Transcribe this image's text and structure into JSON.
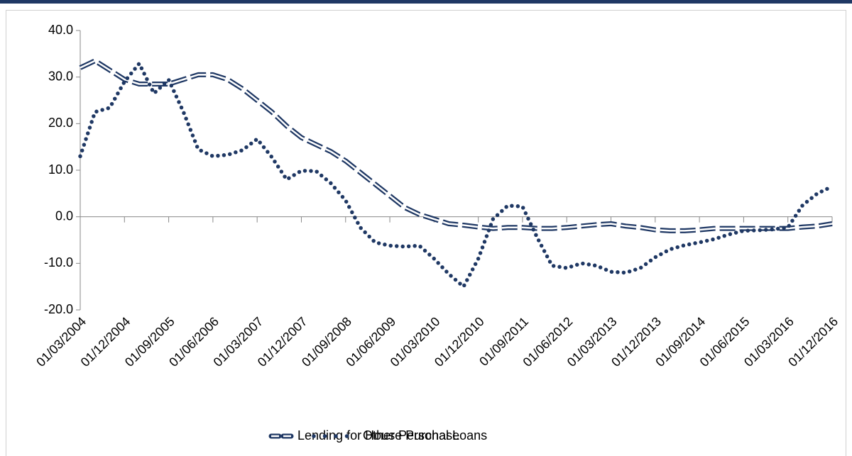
{
  "chart_data": {
    "type": "line",
    "categories": [
      "01/03/2004",
      null,
      null,
      "01/12/2004",
      null,
      null,
      "01/09/2005",
      null,
      null,
      "01/06/2006",
      null,
      null,
      "01/03/2007",
      null,
      null,
      "01/12/2007",
      null,
      null,
      "01/09/2008",
      null,
      null,
      "01/06/2009",
      null,
      null,
      "01/03/2010",
      null,
      null,
      "01/12/2010",
      null,
      null,
      "01/09/2011",
      null,
      null,
      "01/06/2012",
      null,
      null,
      "01/03/2013",
      null,
      null,
      "01/12/2013",
      null,
      null,
      "01/09/2014",
      null,
      null,
      "01/06/2015",
      null,
      null,
      "01/03/2016",
      null,
      null,
      "01/12/2016"
    ],
    "series": [
      {
        "name": "Lending for House Purchase",
        "color": "#1f3864",
        "style": "double-dash",
        "values": [
          32,
          33.5,
          31.5,
          29.5,
          28.5,
          28.5,
          28.5,
          29.5,
          30.5,
          30.5,
          29.5,
          27.5,
          25,
          22.5,
          19.5,
          17,
          15.5,
          14,
          12,
          9.5,
          7,
          4.5,
          2,
          0.5,
          -0.5,
          -1.5,
          -1.8,
          -2.2,
          -2.5,
          -2.3,
          -2.3,
          -2.5,
          -2.5,
          -2.3,
          -2,
          -1.7,
          -1.5,
          -2,
          -2.3,
          -2.8,
          -3,
          -3,
          -2.8,
          -2.5,
          -2.5,
          -2.5,
          -2.5,
          -2.5,
          -2.5,
          -2.2,
          -2,
          -1.5
        ]
      },
      {
        "name": "Other Personal Loans",
        "color": "#1f3864",
        "style": "dotted",
        "values": [
          13,
          22.5,
          23.4,
          29,
          32.9,
          26.5,
          29.4,
          22.5,
          14.5,
          13,
          13.3,
          14.3,
          16.7,
          12.8,
          8,
          9.9,
          9.8,
          7.2,
          3.5,
          -2.3,
          -5.5,
          -6.2,
          -6.4,
          -6.2,
          -9,
          -12.3,
          -15,
          -9,
          -0.5,
          2.4,
          2.2,
          -4.5,
          -10.5,
          -11,
          -10,
          -10.5,
          -11.8,
          -12,
          -11,
          -8.7,
          -7,
          -6.1,
          -5.5,
          -4.8,
          -3.8,
          -3,
          -2.9,
          -2.7,
          -2.3,
          2.5,
          5,
          6.5
        ]
      }
    ],
    "ylim": [
      -20,
      40
    ],
    "yticks": [
      {
        "value": -20,
        "label": "-20.0"
      },
      {
        "value": -10,
        "label": "-10.0"
      },
      {
        "value": 0,
        "label": "0.0"
      },
      {
        "value": 10,
        "label": "10.0"
      },
      {
        "value": 20,
        "label": "20.0"
      },
      {
        "value": 30,
        "label": "30.0"
      },
      {
        "value": 40,
        "label": "40.0"
      }
    ],
    "legend": "bottom",
    "grid": false
  }
}
